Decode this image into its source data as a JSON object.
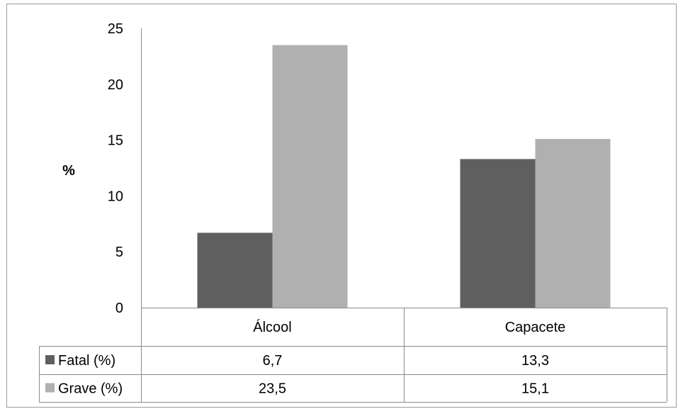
{
  "chart_data": {
    "type": "bar",
    "categories": [
      "Álcool",
      "Capacete"
    ],
    "series": [
      {
        "name": "Fatal (%)",
        "values": [
          6.7,
          13.3
        ],
        "labels": [
          "6,7",
          "13,3"
        ],
        "color": "#5f5f5f"
      },
      {
        "name": "Grave (%)",
        "values": [
          23.5,
          15.1
        ],
        "labels": [
          "23,5",
          "15,1"
        ],
        "color": "#b0b0b0"
      }
    ],
    "ylabel": "%",
    "ylim": [
      0,
      25
    ],
    "yticks": [
      0,
      5,
      10,
      15,
      20,
      25
    ],
    "grid": false,
    "legend": "data-table"
  }
}
